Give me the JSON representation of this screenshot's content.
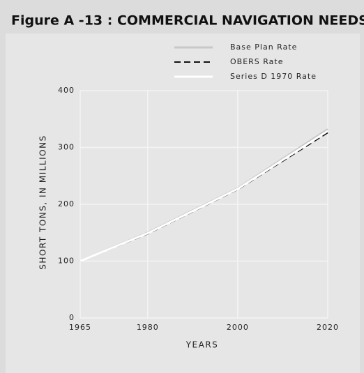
{
  "chart_data": {
    "type": "line",
    "title": "Figure A -13 : COMMERCIAL NAVIGATION NEEDS",
    "x_label": "YEARS",
    "y_label": "SHORT TONS, IN MILLIONS",
    "x": [
      1965,
      1980,
      2000,
      2020
    ],
    "series": [
      {
        "name": "Base Plan Rate",
        "color": "#c8c8c8",
        "line_style": "solid",
        "values": [
          100,
          150,
          228,
          332
        ]
      },
      {
        "name": "OBERS Rate",
        "color": "#111111",
        "line_style": "dashed",
        "values": [
          100,
          148,
          226,
          326
        ]
      },
      {
        "name": "Series D 1970 Rate",
        "color": "#ffffff",
        "line_style": "solid",
        "values": [
          100,
          149,
          227,
          329
        ]
      }
    ],
    "xlim": [
      1965,
      2020
    ],
    "xticks": [
      1965,
      1980,
      2000,
      2020
    ],
    "ylim": [
      0,
      400
    ],
    "yticks": [
      0,
      100,
      200,
      300,
      400
    ],
    "grid": true,
    "legend": "top-right"
  }
}
